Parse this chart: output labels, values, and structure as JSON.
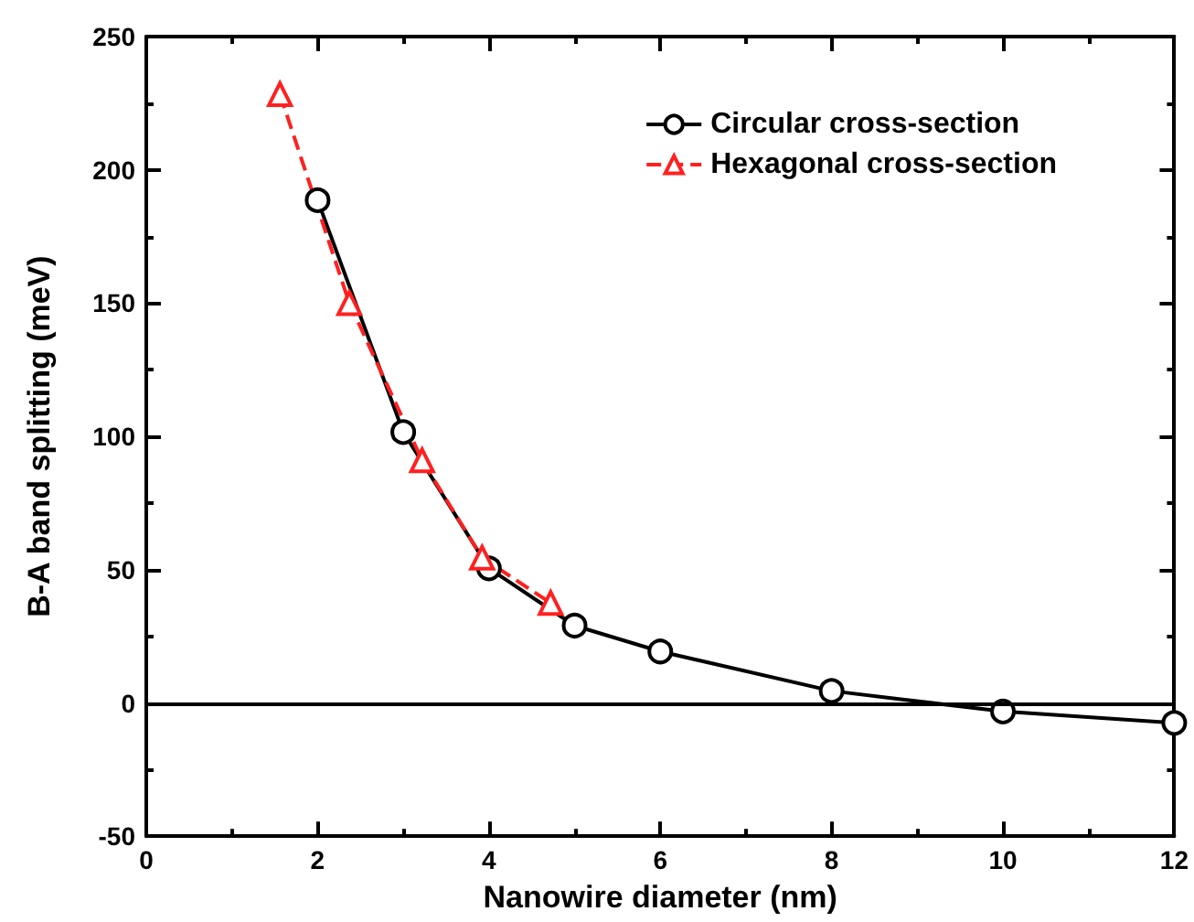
{
  "chart_data": {
    "type": "line",
    "xlabel": "Nanowire diameter (nm)",
    "ylabel": "B-A band splitting (meV)",
    "xlim": [
      0,
      12
    ],
    "xticks": [
      0,
      2,
      4,
      6,
      8,
      10,
      12
    ],
    "ylim": [
      -50,
      250
    ],
    "yticks": [
      -50,
      0,
      50,
      100,
      150,
      200,
      250
    ],
    "grid": false,
    "legend": "top right",
    "ref_lines": [
      {
        "axis": "y",
        "value": 0,
        "color": "#000000",
        "line_style": "solid"
      }
    ],
    "series": [
      {
        "name": "Circular cross-section",
        "color": "#000000",
        "marker": "circle",
        "line_style": "solid",
        "x": [
          2,
          3,
          4,
          5,
          6,
          8,
          10,
          12
        ],
        "values": [
          188.6,
          101.6,
          50.5,
          29,
          19.3,
          4.5,
          -3.2,
          -7.5
        ]
      },
      {
        "name": "Hexagonal cross-section",
        "color": "#ff2020",
        "marker": "triangle",
        "line_style": "dashed",
        "x": [
          1.56,
          2.37,
          3.22,
          3.92,
          4.72
        ],
        "values": [
          228.4,
          150,
          91,
          54.5,
          37.5
        ]
      }
    ]
  }
}
